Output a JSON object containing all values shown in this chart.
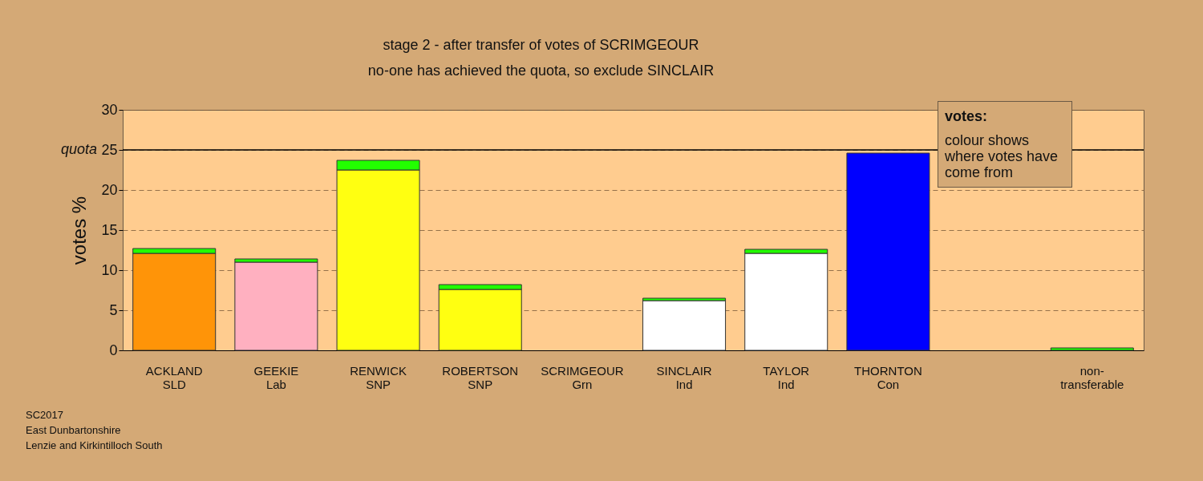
{
  "chart_data": {
    "type": "bar",
    "title": "stage 2 - after transfer of votes of SCRIMGEOUR",
    "subtitle": "no-one has achieved the quota, so exclude SINCLAIR",
    "ylabel": "votes %",
    "categories": [
      "ACKLAND\nSLD",
      "GEEKIE\nLab",
      "RENWICK\nSNP",
      "ROBERTSON\nSNP",
      "SCRIMGEOUR\nGrn",
      "SINCLAIR\nInd",
      "TAYLOR\nInd",
      "THORNTON\nCon",
      null,
      "non-\ntransferable"
    ],
    "stacked": true,
    "series": [
      {
        "colors": [
          "#ff9408",
          "#ffb0c0",
          "#ffff11",
          "#ffff11",
          null,
          "#ffffff",
          "#ffffff",
          "#0000ff",
          null,
          null
        ],
        "values": [
          12.1,
          11.0,
          22.5,
          7.6,
          null,
          6.2,
          12.1,
          24.6,
          null,
          null
        ]
      },
      {
        "color": "#22ff00",
        "values": [
          0.6,
          0.4,
          1.2,
          0.6,
          null,
          0.3,
          0.5,
          null,
          null,
          0.3
        ]
      }
    ],
    "ylim": [
      0,
      30
    ],
    "yticks": [
      0,
      5,
      10,
      15,
      20,
      25,
      30
    ],
    "grid": "y",
    "ref_lines": [
      {
        "axis": "y",
        "value": 25,
        "label": "quota"
      }
    ],
    "annotations": [
      "votes:",
      "colour shows where votes have come from",
      "SC2017",
      "East Dunbartonshire",
      "Lenzie and Kirkintilloch South"
    ]
  }
}
